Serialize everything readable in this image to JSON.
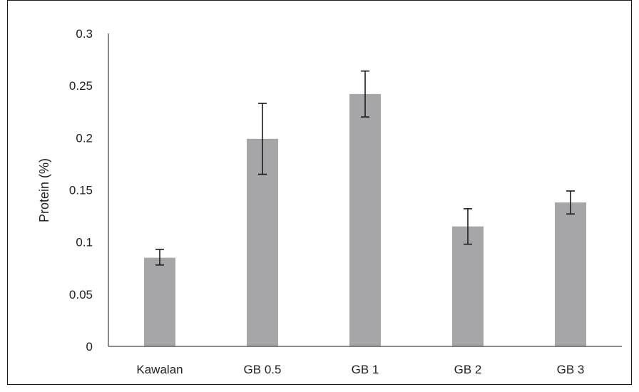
{
  "chart_data": {
    "type": "bar",
    "title": "",
    "xlabel": "",
    "ylabel": "Protein (%)",
    "categories": [
      "Kawalan",
      "GB 0.5",
      "GB 1",
      "GB 2",
      "GB 3"
    ],
    "values": [
      0.085,
      0.199,
      0.242,
      0.115,
      0.138
    ],
    "error_low": [
      0.078,
      0.165,
      0.22,
      0.098,
      0.127
    ],
    "error_high": [
      0.093,
      0.233,
      0.264,
      0.132,
      0.149
    ],
    "ylim": [
      0,
      0.3
    ],
    "yticks": [
      "0",
      "0.05",
      "0.1",
      "0.15",
      "0.2",
      "0.25",
      "0.3"
    ],
    "grid": false,
    "colors": {
      "bar": "#a6a6a8",
      "axis": "#1a1a1a",
      "error": "#1a1a1a"
    }
  }
}
